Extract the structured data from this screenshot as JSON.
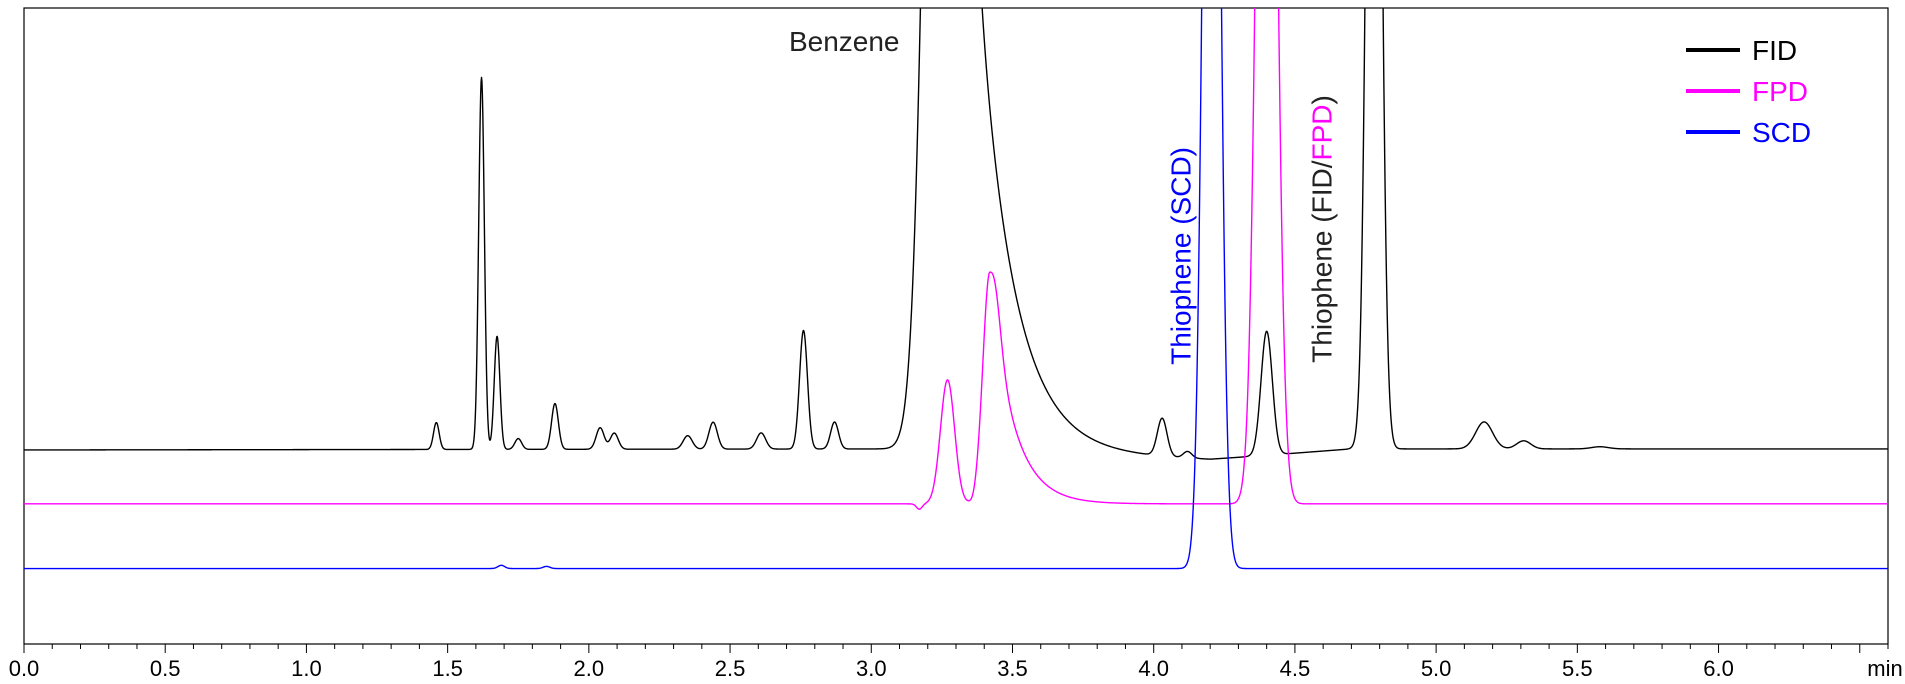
{
  "chart_data": {
    "type": "line",
    "title": "",
    "xlabel": "",
    "ylabel": "",
    "x_unit": "min",
    "xlim": [
      0.0,
      6.6
    ],
    "ylim": [
      -0.12,
      1.06
    ],
    "x_ticks": [
      "0.0",
      "0.5",
      "1.0",
      "1.5",
      "2.0",
      "2.5",
      "3.0",
      "3.5",
      "4.0",
      "4.5",
      "5.0",
      "5.5",
      "6.0"
    ],
    "grid": false,
    "legend_position": "top-right",
    "legend": [
      {
        "name": "FID",
        "color": "#000000"
      },
      {
        "name": "FPD",
        "color": "#ff00ff"
      },
      {
        "name": "SCD",
        "color": "#0000ff"
      }
    ],
    "colors": {
      "FID": "#000000",
      "FPD": "#ff00ff",
      "SCD": "#0000ff",
      "label_text": "#222222"
    },
    "series": [
      {
        "name": "FID",
        "color": "#000000",
        "baseline": 0.24,
        "drift": [
          [
            0.0,
            0.0
          ],
          [
            3.1,
            0.002
          ],
          [
            3.2,
            0.0
          ],
          [
            4.2,
            -0.018
          ],
          [
            4.7,
            0.002
          ],
          [
            6.6,
            0.002
          ]
        ],
        "peaks": [
          {
            "rt": 1.46,
            "height": 0.05,
            "width": 0.01
          },
          {
            "rt": 1.62,
            "height": 0.69,
            "width": 0.01
          },
          {
            "rt": 1.675,
            "height": 0.21,
            "width": 0.01
          },
          {
            "rt": 1.75,
            "height": 0.02,
            "width": 0.012
          },
          {
            "rt": 1.88,
            "height": 0.085,
            "width": 0.012
          },
          {
            "rt": 2.04,
            "height": 0.04,
            "width": 0.014
          },
          {
            "rt": 2.09,
            "height": 0.03,
            "width": 0.014
          },
          {
            "rt": 2.35,
            "height": 0.025,
            "width": 0.016
          },
          {
            "rt": 2.44,
            "height": 0.05,
            "width": 0.015
          },
          {
            "rt": 2.61,
            "height": 0.03,
            "width": 0.016
          },
          {
            "rt": 2.76,
            "height": 0.22,
            "width": 0.014
          },
          {
            "rt": 2.87,
            "height": 0.05,
            "width": 0.014
          },
          {
            "rt": 3.25,
            "height": 2.6,
            "width": 0.05,
            "tail": 0.12
          },
          {
            "rt": 4.03,
            "height": 0.07,
            "width": 0.017
          },
          {
            "rt": 4.12,
            "height": 0.012,
            "width": 0.015
          },
          {
            "rt": 4.4,
            "height": 0.23,
            "width": 0.02
          },
          {
            "rt": 4.78,
            "height": 2.4,
            "width": 0.022
          },
          {
            "rt": 5.17,
            "height": 0.05,
            "width": 0.03
          },
          {
            "rt": 5.31,
            "height": 0.015,
            "width": 0.025
          },
          {
            "rt": 5.58,
            "height": 0.004,
            "width": 0.03
          }
        ]
      },
      {
        "name": "FPD",
        "color": "#ff00ff",
        "baseline": 0.14,
        "drift": [
          [
            0.0,
            0.0
          ],
          [
            6.6,
            0.0
          ]
        ],
        "peaks": [
          {
            "rt": 3.17,
            "height": -0.01,
            "width": 0.01
          },
          {
            "rt": 3.27,
            "height": 0.23,
            "width": 0.025
          },
          {
            "rt": 3.36,
            "height": -0.005,
            "width": 0.01
          },
          {
            "rt": 3.42,
            "height": 0.43,
            "width": 0.025,
            "tail": 0.08
          },
          {
            "rt": 4.4,
            "height": 2.5,
            "width": 0.03
          }
        ]
      },
      {
        "name": "SCD",
        "color": "#0000ff",
        "baseline": 0.02,
        "drift": [
          [
            0.0,
            0.0
          ],
          [
            6.6,
            0.0
          ]
        ],
        "peaks": [
          {
            "rt": 1.69,
            "height": 0.006,
            "width": 0.012
          },
          {
            "rt": 1.85,
            "height": 0.004,
            "width": 0.012
          },
          {
            "rt": 4.205,
            "height": 2.6,
            "width": 0.026
          }
        ]
      }
    ],
    "annotations": [
      {
        "text": "Benzene",
        "x": 3.1,
        "y": 0.98,
        "color": "#222222",
        "rotation": 0,
        "anchor": "end"
      },
      {
        "text": "Thiophene (SCD)",
        "x": 4.13,
        "y": 0.6,
        "color": "#0000ff",
        "rotation": -90,
        "anchor": "middle"
      },
      {
        "text": "Thiophene (",
        "x": 4.63,
        "y": 0.65,
        "color": "#222222",
        "rotation": -90,
        "anchor": "middle",
        "parts": [
          {
            "text": "Thiophene (",
            "color": "#222222"
          },
          {
            "text": "FID",
            "color": "#222222"
          },
          {
            "text": "/",
            "color": "#222222"
          },
          {
            "text": "FPD",
            "color": "#ff00ff"
          },
          {
            "text": ")",
            "color": "#222222"
          }
        ]
      }
    ]
  }
}
